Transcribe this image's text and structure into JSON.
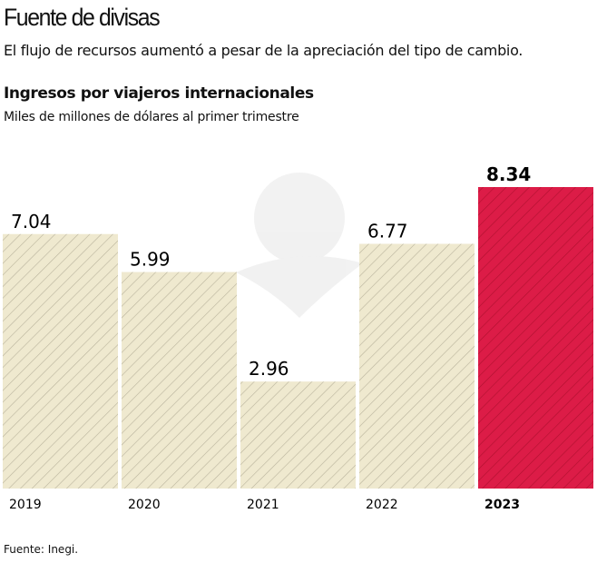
{
  "header": {
    "title": "Fuente de divisas",
    "subtitle": "El flujo de recursos aumentó a pesar de la apreciación del tipo de cambio."
  },
  "chart_data": {
    "type": "bar",
    "title": "Ingresos por viajeros internacionales",
    "subtitle": "Miles de millones de dólares al primer trimestre",
    "categories": [
      "2019",
      "2020",
      "2021",
      "2022",
      "2023"
    ],
    "values": [
      7.04,
      5.99,
      2.96,
      6.77,
      8.34
    ],
    "value_labels": [
      "7.04",
      "5.99",
      "2.96",
      "6.77",
      "8.34"
    ],
    "highlight": "2023",
    "ylim": [
      0,
      8.34
    ],
    "grid": false,
    "colors": {
      "base": "#efe9cf",
      "base_hatch": "#b9b39c",
      "highlight": "#dc1c47",
      "highlight_hatch": "#b0102f"
    }
  },
  "footer": {
    "source": "Fuente: Inegi."
  }
}
